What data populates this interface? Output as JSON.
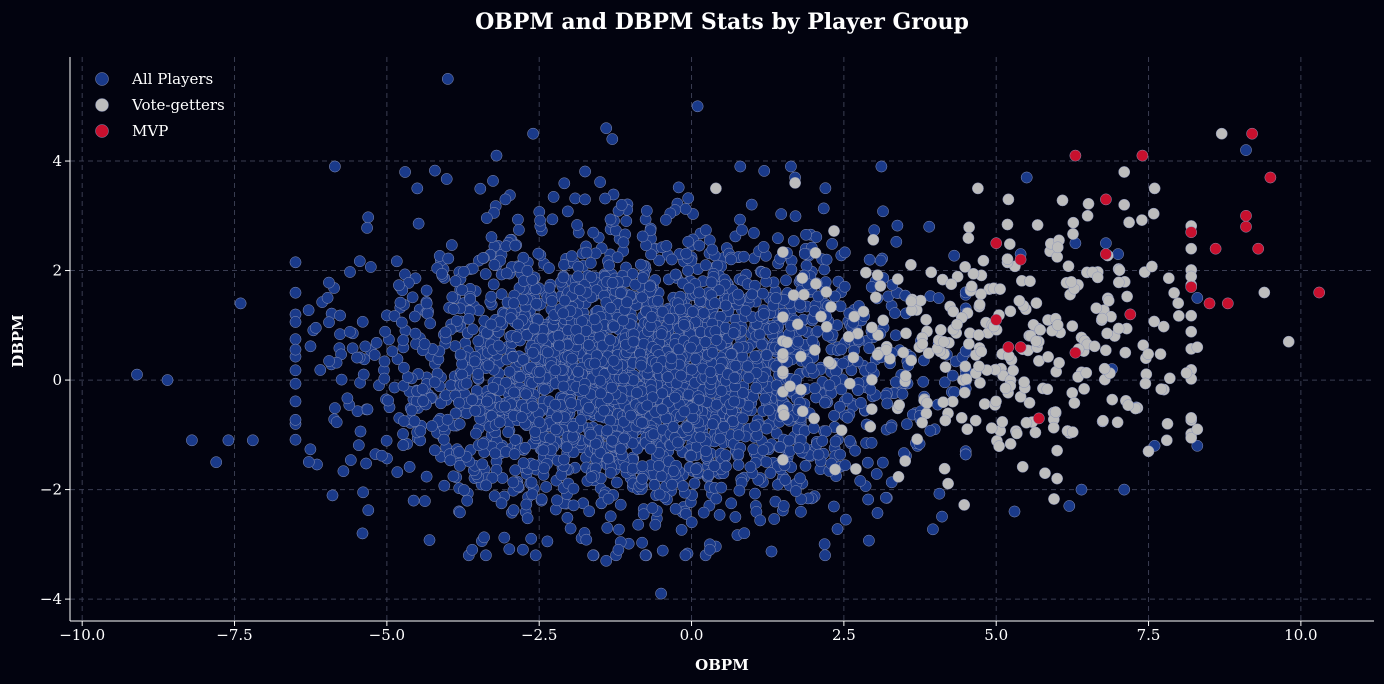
{
  "chart_data": {
    "type": "scatter",
    "title": "OBPM and DBPM Stats by Player Group",
    "xlabel": "OBPM",
    "ylabel": "DBPM",
    "xlim": [
      -10.2,
      11.2
    ],
    "ylim": [
      -4.4,
      5.9
    ],
    "xticks": [
      -10.0,
      -7.5,
      -5.0,
      -2.5,
      0.0,
      2.5,
      5.0,
      7.5,
      10.0
    ],
    "xtick_labels": [
      "−10.0",
      "−7.5",
      "−5.0",
      "−2.5",
      "0.0",
      "2.5",
      "5.0",
      "7.5",
      "10.0"
    ],
    "yticks": [
      -4,
      -2,
      0,
      2,
      4
    ],
    "ytick_labels": [
      "−4",
      "−2",
      "0",
      "2",
      "4"
    ],
    "grid": true,
    "legend_position": "top-left",
    "background": "#02030f",
    "series": [
      {
        "name": "All Players",
        "color": "#1a3a8a",
        "distribution": {
          "count": 3000,
          "x_mean": -0.9,
          "x_sd": 2.1,
          "y_mean": 0.1,
          "y_sd": 1.25,
          "x_range": [
            -6.5,
            4.5
          ],
          "y_range": [
            -3.2,
            3.9
          ]
        },
        "points": [
          [
            -9.1,
            0.1
          ],
          [
            -8.6,
            0.0
          ],
          [
            -8.2,
            -1.1
          ],
          [
            -7.8,
            -1.5
          ],
          [
            -7.6,
            -1.1
          ],
          [
            -7.2,
            -1.1
          ],
          [
            -7.4,
            1.4
          ],
          [
            -4.0,
            5.5
          ],
          [
            0.1,
            5.0
          ],
          [
            -1.4,
            4.6
          ],
          [
            -1.3,
            4.4
          ],
          [
            -2.6,
            4.5
          ],
          [
            -3.2,
            4.1
          ],
          [
            -4.7,
            3.8
          ],
          [
            -4.5,
            3.5
          ],
          [
            5.5,
            3.7
          ],
          [
            9.1,
            4.2
          ],
          [
            1.7,
            3.7
          ],
          [
            0.8,
            3.9
          ],
          [
            -0.5,
            -3.9
          ],
          [
            -1.4,
            -3.3
          ],
          [
            -1.2,
            -3.1
          ],
          [
            -0.1,
            -3.2
          ],
          [
            0.3,
            -3.0
          ],
          [
            0.3,
            -3.1
          ],
          [
            -3.6,
            -3.1
          ],
          [
            -5.4,
            -2.8
          ],
          [
            7.1,
            -2.0
          ],
          [
            7.3,
            -0.5
          ],
          [
            8.3,
            -1.2
          ],
          [
            7.6,
            -1.2
          ],
          [
            6.9,
            0.2
          ],
          [
            6.2,
            -2.3
          ],
          [
            5.3,
            -2.4
          ],
          [
            6.4,
            -2.0
          ],
          [
            4.6,
            1.7
          ],
          [
            6.8,
            2.5
          ],
          [
            6.3,
            2.5
          ],
          [
            5.4,
            2.3
          ],
          [
            8.3,
            1.5
          ],
          [
            7.0,
            2.3
          ],
          [
            3.9,
            2.8
          ]
        ]
      },
      {
        "name": "Vote-getters",
        "color": "#bdbdbd",
        "distribution": {
          "count": 320,
          "x_mean": 5.0,
          "x_sd": 1.8,
          "y_mean": 0.5,
          "y_sd": 1.15,
          "x_range": [
            1.5,
            8.2
          ],
          "y_range": [
            -2.4,
            3.3
          ]
        },
        "points": [
          [
            8.7,
            4.5
          ],
          [
            9.8,
            0.7
          ],
          [
            9.4,
            1.6
          ],
          [
            7.6,
            3.5
          ],
          [
            7.1,
            3.8
          ],
          [
            7.1,
            3.2
          ],
          [
            7.5,
            -1.3
          ],
          [
            7.8,
            -1.1
          ],
          [
            8.3,
            -0.9
          ],
          [
            8.3,
            0.6
          ],
          [
            8.2,
            2.4
          ],
          [
            6.0,
            -1.8
          ],
          [
            5.8,
            -1.7
          ],
          [
            4.7,
            3.5
          ],
          [
            5.2,
            3.3
          ],
          [
            1.7,
            3.6
          ],
          [
            0.4,
            3.5
          ],
          [
            6.5,
            3.0
          ]
        ]
      },
      {
        "name": "MVP",
        "color": "#c8102e",
        "points": [
          [
            9.2,
            4.5
          ],
          [
            7.4,
            4.1
          ],
          [
            6.3,
            4.1
          ],
          [
            9.5,
            3.7
          ],
          [
            6.8,
            3.3
          ],
          [
            9.1,
            3.0
          ],
          [
            9.1,
            2.8
          ],
          [
            8.2,
            2.7
          ],
          [
            5.0,
            2.5
          ],
          [
            8.6,
            2.4
          ],
          [
            9.3,
            2.4
          ],
          [
            6.8,
            2.3
          ],
          [
            5.4,
            2.2
          ],
          [
            8.2,
            1.7
          ],
          [
            10.3,
            1.6
          ],
          [
            8.5,
            1.4
          ],
          [
            8.8,
            1.4
          ],
          [
            7.2,
            1.2
          ],
          [
            5.0,
            1.1
          ],
          [
            5.2,
            0.6
          ],
          [
            5.4,
            0.6
          ],
          [
            6.3,
            0.5
          ],
          [
            5.7,
            -0.7
          ]
        ]
      }
    ]
  }
}
